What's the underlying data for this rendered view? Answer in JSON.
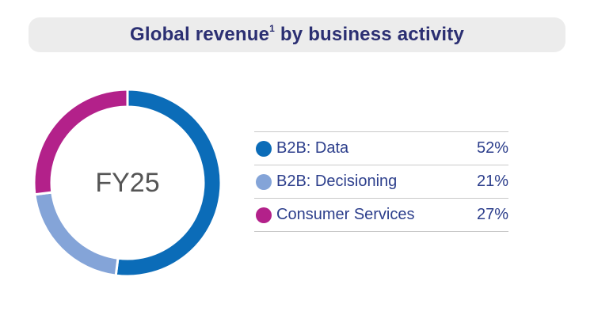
{
  "title": {
    "main": "Global revenue",
    "footnote": "1",
    "suffix": " by business activity"
  },
  "center_label": "FY25",
  "colors": {
    "b2b_data": "#0b6cb8",
    "b2b_decisioning": "#84a4d8",
    "consumer_services": "#b3218a",
    "title_text": "#2b2f72",
    "legend_text": "#2d3f8c"
  },
  "chart_data": {
    "type": "pie",
    "donut": true,
    "categories": [
      "B2B: Data",
      "B2B: Decisioning",
      "Consumer Services"
    ],
    "values": [
      52,
      21,
      27
    ],
    "value_labels": [
      "52%",
      "21%",
      "27%"
    ],
    "title": "Global revenue by business activity",
    "legend_position": "right"
  }
}
